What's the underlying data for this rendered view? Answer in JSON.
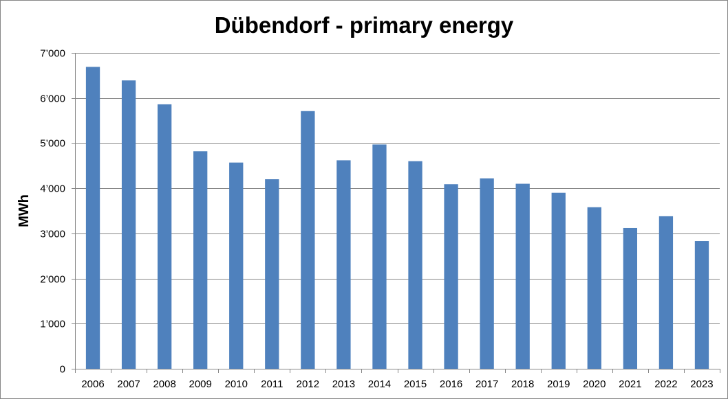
{
  "chart_data": {
    "type": "bar",
    "title": "Dübendorf - primary energy",
    "xlabel": "",
    "ylabel": "MWh",
    "categories": [
      "2006",
      "2007",
      "2008",
      "2009",
      "2010",
      "2011",
      "2012",
      "2013",
      "2014",
      "2015",
      "2016",
      "2017",
      "2018",
      "2019",
      "2020",
      "2021",
      "2022",
      "2023"
    ],
    "values": [
      6690,
      6390,
      5860,
      4820,
      4570,
      4200,
      5710,
      4620,
      4970,
      4600,
      4090,
      4220,
      4100,
      3900,
      3580,
      3120,
      3380,
      2830
    ],
    "ylim": [
      0,
      7000
    ],
    "yticks": [
      0,
      1000,
      2000,
      3000,
      4000,
      5000,
      6000,
      7000
    ],
    "ytick_labels": [
      "0",
      "1’000",
      "2’000",
      "3’000",
      "4’000",
      "5’000",
      "6’000",
      "7’000"
    ],
    "grid": true,
    "legend": "none",
    "colors": {
      "bar": "#4F81BD",
      "grid": "#868686"
    }
  }
}
